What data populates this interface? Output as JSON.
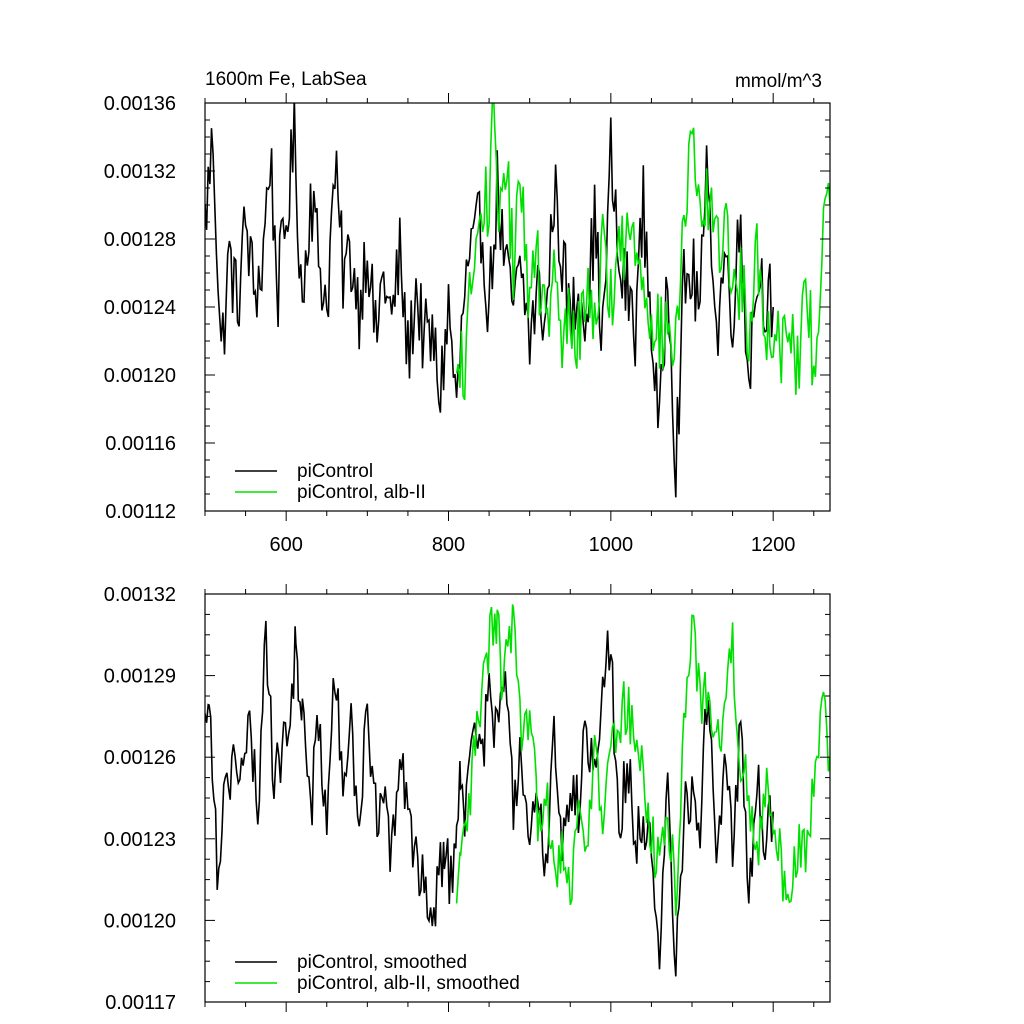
{
  "chart_data": [
    {
      "type": "line",
      "title_left": "1600m Fe, LabSea",
      "title_right": "mmol/m^3",
      "xlabel": "",
      "ylabel": "",
      "xlim": [
        500,
        1270
      ],
      "ylim": [
        0.00112,
        0.00136
      ],
      "x_ticks": [
        600,
        800,
        1000,
        1200
      ],
      "y_ticks": [
        "0.00112",
        "0.00116",
        "0.00120",
        "0.00124",
        "0.00128",
        "0.00132",
        "0.00136"
      ],
      "show_x_tick_labels": true,
      "legend_position": "bottom-left",
      "series": [
        {
          "name": "piControl",
          "color": "#000000",
          "x": [
            500,
            510,
            520,
            530,
            540,
            550,
            560,
            570,
            580,
            590,
            600,
            610,
            620,
            630,
            640,
            650,
            660,
            670,
            680,
            690,
            700,
            710,
            720,
            730,
            740,
            750,
            760,
            770,
            780,
            790,
            800,
            810,
            820,
            830,
            840,
            850,
            860,
            870,
            880,
            890,
            900,
            910,
            920,
            930,
            940,
            950,
            960,
            970,
            980,
            990,
            1000,
            1010,
            1020,
            1030,
            1040,
            1050,
            1060,
            1070,
            1080,
            1090,
            1100,
            1110,
            1120,
            1130,
            1140,
            1150,
            1160,
            1170,
            1180,
            1190,
            1200
          ],
          "values": [
            0.00129,
            0.00134,
            0.00121,
            0.00127,
            0.00124,
            0.00129,
            0.00125,
            0.00126,
            0.00133,
            0.00125,
            0.00129,
            0.00134,
            0.00124,
            0.00131,
            0.00127,
            0.00124,
            0.00132,
            0.00126,
            0.00127,
            0.00124,
            0.00128,
            0.00122,
            0.00126,
            0.00123,
            0.00127,
            0.00121,
            0.00125,
            0.00122,
            0.00122,
            0.00119,
            0.00124,
            0.00118,
            0.00125,
            0.00127,
            0.00129,
            0.00124,
            0.00131,
            0.00126,
            0.00124,
            0.00126,
            0.00122,
            0.00125,
            0.00123,
            0.00131,
            0.00127,
            0.00123,
            0.00125,
            0.00124,
            0.00129,
            0.00122,
            0.00133,
            0.00126,
            0.00125,
            0.00123,
            0.0013,
            0.00123,
            0.00116,
            0.00127,
            0.00115,
            0.00125,
            0.00126,
            0.00124,
            0.00133,
            0.00122,
            0.00127,
            0.00124,
            0.00129,
            0.0012,
            0.00126,
            0.00125,
            0.00124
          ],
          "jitter": 2.5e-05
        },
        {
          "name": "piControl, alb-II",
          "color": "#00e000",
          "x": [
            810,
            820,
            830,
            840,
            850,
            855,
            860,
            870,
            880,
            890,
            900,
            910,
            920,
            930,
            940,
            950,
            960,
            970,
            980,
            990,
            1000,
            1010,
            1020,
            1030,
            1040,
            1050,
            1060,
            1070,
            1080,
            1090,
            1100,
            1110,
            1120,
            1130,
            1140,
            1150,
            1160,
            1170,
            1180,
            1190,
            1200,
            1210,
            1220,
            1230,
            1240,
            1250,
            1260,
            1270
          ],
          "values": [
            0.00119,
            0.00121,
            0.00126,
            0.00129,
            0.00131,
            0.00135,
            0.00129,
            0.00133,
            0.00126,
            0.00132,
            0.00124,
            0.00127,
            0.00122,
            0.00126,
            0.00121,
            0.00124,
            0.00122,
            0.00125,
            0.00124,
            0.00127,
            0.00125,
            0.00127,
            0.00128,
            0.00128,
            0.00126,
            0.00124,
            0.00122,
            0.00123,
            0.00121,
            0.00129,
            0.00134,
            0.00128,
            0.00131,
            0.00127,
            0.00129,
            0.00126,
            0.00125,
            0.00123,
            0.00128,
            0.00122,
            0.00123,
            0.00122,
            0.00124,
            0.0012,
            0.00125,
            0.00121,
            0.00127,
            0.0013
          ],
          "jitter": 2.5e-05
        }
      ]
    },
    {
      "type": "line",
      "title_left": "",
      "title_right": "",
      "xlabel": "",
      "ylabel": "",
      "xlim": [
        500,
        1270
      ],
      "ylim": [
        0.00117,
        0.00132
      ],
      "x_ticks": [
        600,
        800,
        1000,
        1200
      ],
      "y_ticks": [
        "0.00117",
        "0.00120",
        "0.00123",
        "0.00126",
        "0.00129",
        "0.00132"
      ],
      "show_x_tick_labels": false,
      "legend_position": "bottom-left",
      "series": [
        {
          "name": "piControl, smoothed",
          "color": "#000000",
          "x": [
            500,
            505,
            515,
            525,
            535,
            545,
            555,
            565,
            575,
            585,
            595,
            605,
            612,
            615,
            620,
            630,
            640,
            650,
            660,
            670,
            680,
            690,
            700,
            710,
            720,
            730,
            740,
            750,
            760,
            770,
            780,
            790,
            795,
            805,
            810,
            815,
            820,
            830,
            840,
            850,
            860,
            870,
            880,
            890,
            900,
            910,
            920,
            930,
            940,
            950,
            960,
            970,
            980,
            990,
            1000,
            1010,
            1020,
            1030,
            1040,
            1050,
            1060,
            1070,
            1080,
            1090,
            1100,
            1110,
            1120,
            1130,
            1140,
            1150,
            1160,
            1170,
            1180,
            1190,
            1200
          ],
          "values": [
            0.00127,
            0.00129,
            0.00122,
            0.00125,
            0.00126,
            0.00125,
            0.00127,
            0.00124,
            0.00131,
            0.00125,
            0.00126,
            0.00128,
            0.0013,
            0.00129,
            0.00128,
            0.00124,
            0.00127,
            0.00124,
            0.00129,
            0.00125,
            0.00127,
            0.00123,
            0.00128,
            0.00124,
            0.00125,
            0.00122,
            0.00126,
            0.00124,
            0.00122,
            0.00122,
            0.0012,
            0.00122,
            0.00123,
            0.00121,
            0.00124,
            0.00125,
            0.00124,
            0.00127,
            0.00126,
            0.00128,
            0.00127,
            0.00129,
            0.00124,
            0.00126,
            0.00122,
            0.00125,
            0.00122,
            0.00127,
            0.00123,
            0.00125,
            0.00124,
            0.00127,
            0.00126,
            0.00129,
            0.0013,
            0.00123,
            0.00126,
            0.00123,
            0.00124,
            0.00122,
            0.00118,
            0.00125,
            0.00118,
            0.00124,
            0.00125,
            0.00123,
            0.00129,
            0.00122,
            0.00126,
            0.00123,
            0.00127,
            0.00121,
            0.00125,
            0.00123,
            0.00124
          ],
          "jitter": 1.2e-05
        },
        {
          "name": "piControl, alb-II, smoothed",
          "color": "#00e000",
          "x": [
            810,
            815,
            825,
            835,
            845,
            855,
            860,
            865,
            875,
            880,
            890,
            900,
            910,
            920,
            930,
            940,
            950,
            960,
            970,
            980,
            990,
            1000,
            1010,
            1020,
            1030,
            1040,
            1050,
            1060,
            1070,
            1080,
            1090,
            1100,
            1110,
            1120,
            1130,
            1140,
            1150,
            1160,
            1170,
            1180,
            1190,
            1200,
            1210,
            1220,
            1230,
            1240,
            1250,
            1260,
            1270
          ],
          "values": [
            0.0012,
            0.00122,
            0.00124,
            0.00127,
            0.00129,
            0.00131,
            0.00131,
            0.00129,
            0.0013,
            0.00131,
            0.00126,
            0.00127,
            0.00124,
            0.00125,
            0.00122,
            0.00123,
            0.00121,
            0.00124,
            0.00123,
            0.00126,
            0.00124,
            0.00126,
            0.00127,
            0.00128,
            0.00127,
            0.00125,
            0.00123,
            0.00122,
            0.00124,
            0.00121,
            0.00127,
            0.00131,
            0.00128,
            0.00129,
            0.00126,
            0.00128,
            0.0013,
            0.00126,
            0.00125,
            0.00122,
            0.00125,
            0.00123,
            0.00122,
            0.00121,
            0.00123,
            0.00122,
            0.00125,
            0.00128,
            0.00126
          ],
          "jitter": 1.2e-05
        }
      ]
    }
  ]
}
